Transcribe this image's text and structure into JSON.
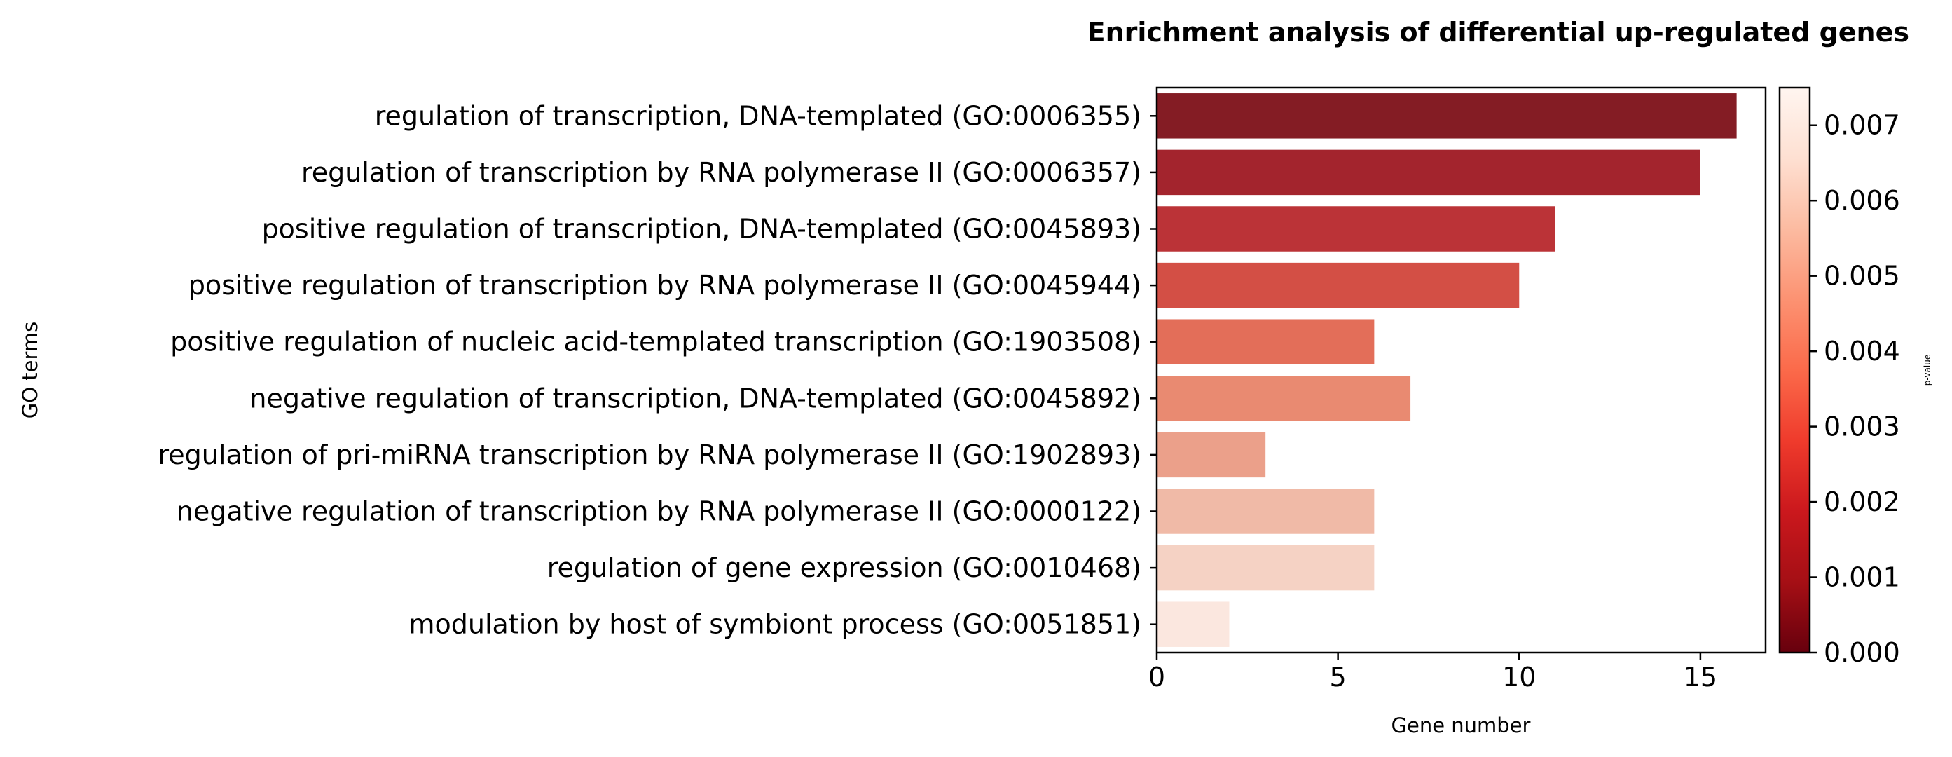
{
  "chart_data": {
    "type": "bar",
    "orientation": "horizontal",
    "title": "Enrichment analysis of differential up-regulated genes",
    "xlabel": "Gene number",
    "ylabel": "GO terms",
    "xlim": [
      0,
      16.8
    ],
    "xticks": [
      "0",
      "5",
      "10",
      "15"
    ],
    "categories": [
      "regulation of transcription, DNA-templated (GO:0006355)",
      "regulation of transcription by RNA polymerase II (GO:0006357)",
      "positive regulation of transcription, DNA-templated (GO:0045893)",
      "positive regulation of transcription by RNA polymerase II (GO:0045944)",
      "positive regulation of nucleic acid-templated transcription (GO:1903508)",
      "negative regulation of transcription, DNA-templated (GO:0045892)",
      "regulation of pri-miRNA transcription by RNA polymerase II (GO:1902893)",
      "negative regulation of transcription by RNA polymerase II (GO:0000122)",
      "regulation of gene expression (GO:0010468)",
      "modulation by host of symbiont process (GO:0051851)"
    ],
    "values": [
      16,
      15,
      11,
      10,
      6,
      7,
      3,
      6,
      6,
      2
    ],
    "colors": [
      "#841c24",
      "#a3242d",
      "#bb3337",
      "#d34f45",
      "#e36e59",
      "#e98a71",
      "#eba08a",
      "#f0baa7",
      "#f5d2c4",
      "#fbe7df"
    ],
    "colorbar": {
      "label": "p-value",
      "range": [
        0,
        0.0075
      ],
      "ticks": [
        "0.000",
        "0.001",
        "0.002",
        "0.003",
        "0.004",
        "0.005",
        "0.006",
        "0.007"
      ],
      "colormap": "Reds_r",
      "stops": [
        "#67000d",
        "#a50f15",
        "#cb181d",
        "#ef3b2c",
        "#fb6a4a",
        "#fc9272",
        "#fcbba1",
        "#fee0d2",
        "#fff5f0"
      ]
    },
    "grid": false,
    "legend": "none"
  }
}
